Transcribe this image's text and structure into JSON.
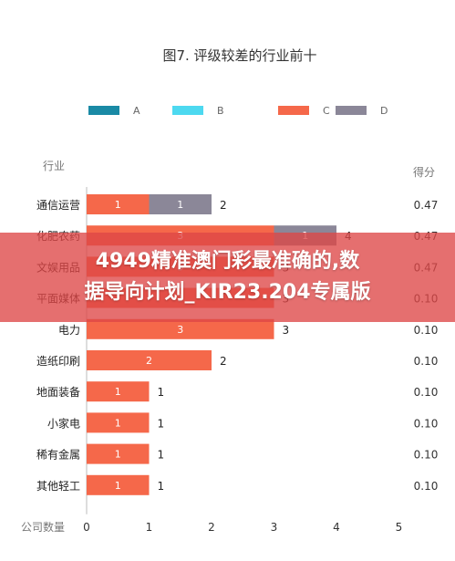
{
  "chart_data": {
    "type": "bar",
    "stacked": true,
    "orientation": "horizontal",
    "title": "图7. 评级较差的行业前十",
    "categories": [
      "通信运营",
      "化肥农药",
      "文娱用品",
      "平面媒体",
      "电力",
      "造纸印刷",
      "地面装备",
      "小家电",
      "稀有金属",
      "其他轻工"
    ],
    "series": [
      {
        "name": "A",
        "color": "#1a8aa5",
        "values": [
          0,
          0,
          0,
          0,
          0,
          0,
          0,
          0,
          0,
          0
        ]
      },
      {
        "name": "B",
        "color": "#4dd9f0",
        "values": [
          0,
          0,
          0,
          0,
          0,
          0,
          0,
          0,
          0,
          0
        ]
      },
      {
        "name": "C",
        "color": "#f5684a",
        "values": [
          1,
          3,
          3,
          3,
          3,
          2,
          1,
          1,
          1,
          1
        ]
      },
      {
        "name": "D",
        "color": "#8b8798",
        "values": [
          1,
          1,
          0,
          0,
          0,
          0,
          0,
          0,
          0,
          0
        ]
      }
    ],
    "totals": [
      2,
      4,
      3,
      3,
      3,
      2,
      1,
      1,
      1,
      1
    ],
    "scores": [
      "0.47",
      "0.47",
      "0.47",
      "0.10",
      "0.10",
      "0.10",
      "0.10",
      "0.10",
      "0.10",
      "0.10"
    ],
    "y_header": "行业",
    "score_header": "得分",
    "xlabel": "公司数量",
    "xticks": [
      0,
      1,
      2,
      3,
      4,
      5
    ],
    "xlim": [
      0,
      5
    ],
    "grid": false,
    "legend_position": "top"
  },
  "banner": {
    "line1": "4949精准澳门彩最准确的,数",
    "line2": "据导向计划_KIR23.204专属版"
  }
}
